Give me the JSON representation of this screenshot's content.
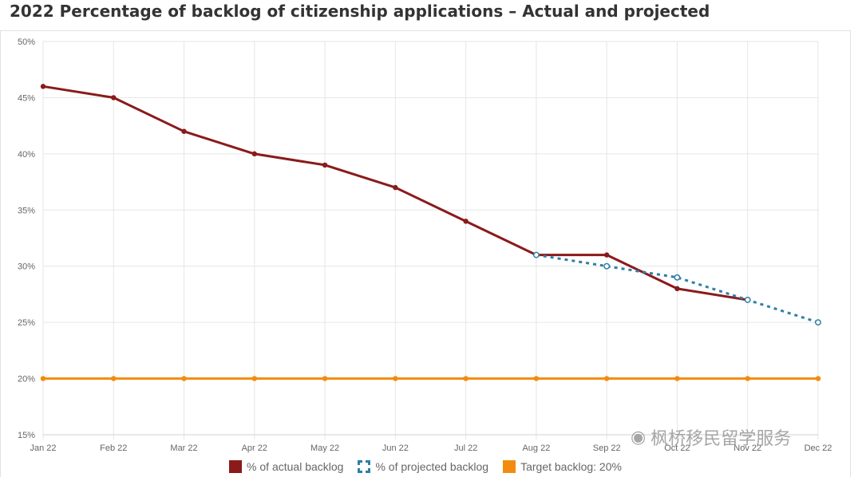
{
  "colors": {
    "actual": "#8b1a1a",
    "projected": "#2e7fa6",
    "target": "#f28c0f",
    "grid": "#e6e6e6",
    "tick_text": "#666666"
  },
  "watermark": {
    "icon": "wechat-icon",
    "text": "枫桥移民留学服务"
  },
  "chart_data": {
    "type": "line",
    "title": "2022 Percentage of backlog of citizenship applications – Actual and projected",
    "xlabel": "",
    "ylabel": "",
    "categories": [
      "Jan 22",
      "Feb 22",
      "Mar 22",
      "Apr 22",
      "May 22",
      "Jun 22",
      "Jul 22",
      "Aug 22",
      "Sep 22",
      "Oct 22",
      "Nov 22",
      "Dec 22"
    ],
    "ylim": [
      15,
      50
    ],
    "yticks": [
      "15%",
      "20%",
      "25%",
      "30%",
      "35%",
      "40%",
      "45%",
      "50%"
    ],
    "ytick_values": [
      15,
      20,
      25,
      30,
      35,
      40,
      45,
      50
    ],
    "grid": true,
    "legend_position": "bottom",
    "series": [
      {
        "name": "% of actual backlog",
        "key": "actual",
        "style": "solid",
        "values": [
          46,
          45,
          42,
          40,
          39,
          37,
          34,
          31,
          31,
          28,
          27,
          null
        ]
      },
      {
        "name": "% of projected backlog",
        "key": "projected",
        "style": "dashed",
        "values": [
          null,
          null,
          null,
          null,
          null,
          null,
          null,
          31,
          30,
          29,
          27,
          25
        ]
      },
      {
        "name": "Target backlog: 20%",
        "key": "target",
        "style": "solid",
        "values": [
          20,
          20,
          20,
          20,
          20,
          20,
          20,
          20,
          20,
          20,
          20,
          20
        ]
      }
    ]
  }
}
